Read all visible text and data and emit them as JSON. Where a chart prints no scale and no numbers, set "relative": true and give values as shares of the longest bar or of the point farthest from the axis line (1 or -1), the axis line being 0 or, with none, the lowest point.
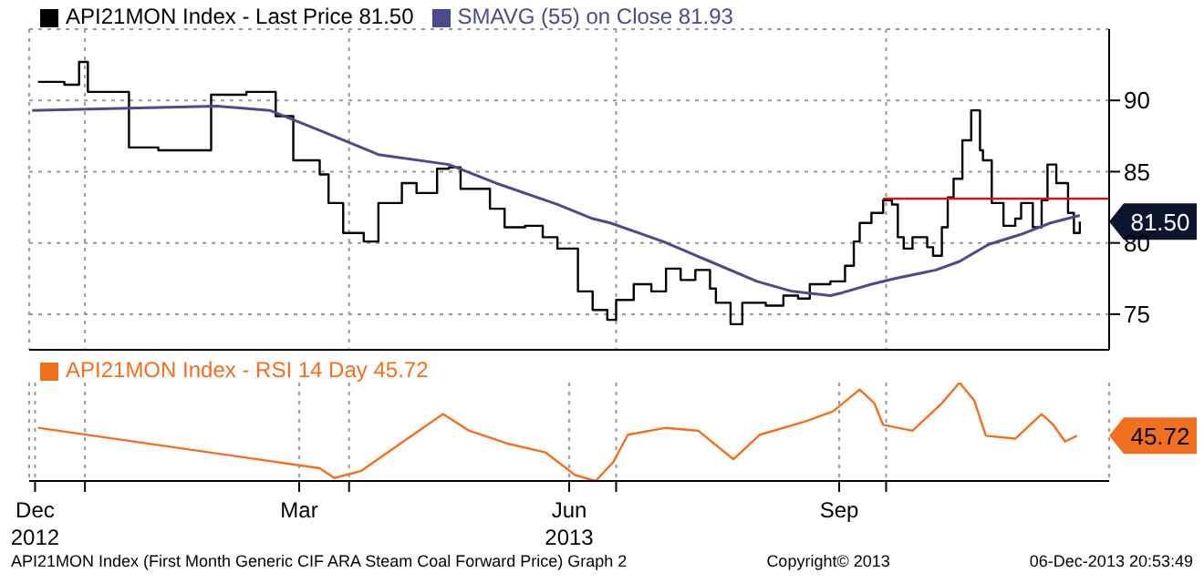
{
  "chart_data": [
    {
      "type": "step",
      "xlim": [
        "2012-12-13",
        "2013-12-16"
      ],
      "xticks": [
        {
          "value": "2013-01-01",
          "label": null
        },
        {
          "value": "2013-04-01",
          "label": null
        },
        {
          "value": "2013-07-01",
          "label": null
        },
        {
          "value": "2013-10-01",
          "label": null
        }
      ],
      "ylim": [
        72.5,
        95
      ],
      "yticks": [
        75,
        80,
        85,
        90
      ],
      "tick_labels": "y",
      "grid": true,
      "legend": "top left",
      "marker": "none",
      "annotations": [
        "81.50"
      ],
      "series": [
        {
          "name": "API21MON Index - Last Price 81.50",
          "color": "#000000",
          "x": [
            "2012-12-16",
            "2012-12-25",
            "2012-12-30",
            "2013-01-02",
            "2013-01-16",
            "2013-01-26",
            "2013-02-13",
            "2013-02-25",
            "2013-03-07",
            "2013-03-13",
            "2013-03-22",
            "2013-03-25",
            "2013-03-30",
            "2013-04-06",
            "2013-04-11",
            "2013-04-19",
            "2013-04-24",
            "2013-05-01",
            "2013-05-05",
            "2013-05-09",
            "2013-05-15",
            "2013-05-19",
            "2013-05-24",
            "2013-05-31",
            "2013-06-06",
            "2013-06-11",
            "2013-06-18",
            "2013-06-23",
            "2013-06-28",
            "2013-07-01",
            "2013-07-07",
            "2013-07-13",
            "2013-07-18",
            "2013-07-23",
            "2013-07-28",
            "2013-08-02",
            "2013-08-04",
            "2013-08-09",
            "2013-08-13",
            "2013-08-21",
            "2013-08-27",
            "2013-09-01",
            "2013-09-05",
            "2013-09-12",
            "2013-09-17",
            "2013-09-20",
            "2013-09-22",
            "2013-09-26",
            "2013-09-30",
            "2013-10-03",
            "2013-10-05",
            "2013-10-07",
            "2013-10-10",
            "2013-10-15",
            "2013-10-17",
            "2013-10-20",
            "2013-10-22",
            "2013-10-24",
            "2013-10-27",
            "2013-10-30",
            "2013-11-02",
            "2013-11-03",
            "2013-11-06",
            "2013-11-10",
            "2013-11-14",
            "2013-11-16",
            "2013-11-20",
            "2013-11-23",
            "2013-11-25",
            "2013-11-28",
            "2013-12-02",
            "2013-12-04",
            "2013-12-06"
          ],
          "values": [
            91.3,
            91.1,
            92.7,
            90.6,
            86.7,
            86.5,
            90.4,
            90.6,
            88.9,
            85.8,
            84.8,
            82.8,
            80.7,
            80.1,
            82.8,
            84.2,
            83.5,
            85.2,
            85.3,
            83.8,
            83.8,
            82.4,
            81.1,
            81.2,
            80.4,
            79.6,
            76.6,
            75.3,
            74.6,
            76.0,
            77.1,
            76.6,
            78.2,
            77.4,
            78.1,
            76.8,
            75.8,
            74.3,
            75.8,
            75.6,
            76.3,
            76.1,
            77.1,
            77.3,
            78.4,
            80.1,
            81.4,
            82.1,
            83.0,
            82.7,
            80.4,
            79.6,
            80.4,
            79.7,
            79.1,
            81.1,
            83.2,
            84.5,
            87.2,
            89.3,
            86.5,
            85.8,
            82.8,
            81.2,
            81.7,
            82.8,
            81.1,
            83.0,
            85.5,
            84.2,
            82.1,
            80.7,
            81.5
          ]
        },
        {
          "name": "SMAVG (55) on Close 81.93",
          "type": "line",
          "color": "#4b4b8c",
          "x": [
            "2012-12-14",
            "2013-02-15",
            "2013-03-05",
            "2013-03-22",
            "2013-04-11",
            "2013-05-05",
            "2013-05-21",
            "2013-06-11",
            "2013-06-23",
            "2013-06-29",
            "2013-07-17",
            "2013-08-02",
            "2013-08-18",
            "2013-08-30",
            "2013-09-12",
            "2013-09-16",
            "2013-09-26",
            "2013-10-04",
            "2013-10-18",
            "2013-10-26",
            "2013-11-05",
            "2013-11-16",
            "2013-11-26",
            "2013-12-06"
          ],
          "values": [
            89.3,
            89.6,
            89.3,
            87.9,
            86.2,
            85.5,
            84.2,
            82.7,
            81.7,
            81.4,
            80.1,
            78.7,
            77.3,
            76.6,
            76.3,
            76.5,
            77.1,
            77.5,
            78.1,
            78.7,
            79.9,
            80.6,
            81.4,
            81.93
          ]
        },
        {
          "type": "line",
          "color": "#ff0000",
          "x": [
            "2013-09-30",
            "2013-12-16"
          ],
          "values": [
            83.1,
            83.1
          ]
        }
      ]
    },
    {
      "type": "line",
      "relative": true,
      "xlim": [
        "2012-12-13",
        "2013-12-16"
      ],
      "xticks": [
        {
          "value": "2012-12-15",
          "label": "Dec 2012"
        },
        {
          "value": "2013-01-01",
          "label": null
        },
        {
          "value": "2013-03-15",
          "label": "Mar"
        },
        {
          "value": "2013-04-01",
          "label": null
        },
        {
          "value": "2013-06-15",
          "label": "Jun 2013"
        },
        {
          "value": "2013-07-01",
          "label": null
        },
        {
          "value": "2013-09-15",
          "label": "Sep"
        },
        {
          "value": "2013-10-01",
          "label": null
        }
      ],
      "tick_labels": "x",
      "grid": "x",
      "legend": "top left",
      "marker": "none",
      "annotations": [
        "45.72",
        "API21MON Index (First Month Generic CIF ARA Steam Coal Forward Price) Graph 2",
        "Copyright© 2013",
        "06-Dec-2013 20:53:49"
      ],
      "series": [
        {
          "name": "API21MON Index - RSI 14 Day 45.72",
          "color": "#f07020",
          "x": [
            "2012-12-16",
            "2013-03-22",
            "2013-03-27",
            "2013-04-05",
            "2013-05-03",
            "2013-05-12",
            "2013-05-25",
            "2013-06-07",
            "2013-06-17",
            "2013-06-24",
            "2013-06-30",
            "2013-07-05",
            "2013-07-18",
            "2013-07-29",
            "2013-08-10",
            "2013-08-19",
            "2013-09-04",
            "2013-09-13",
            "2013-09-22",
            "2013-09-27",
            "2013-09-30",
            "2013-10-10",
            "2013-10-20",
            "2013-10-26",
            "2013-10-31",
            "2013-11-04",
            "2013-11-14",
            "2013-11-23",
            "2013-11-27",
            "2013-12-01",
            "2013-12-05"
          ],
          "values": [
            0.54,
            0.13,
            0.03,
            0.1,
            0.68,
            0.51,
            0.38,
            0.29,
            0.06,
            0,
            0.19,
            0.47,
            0.54,
            0.51,
            0.22,
            0.47,
            0.61,
            0.71,
            0.93,
            0.79,
            0.57,
            0.51,
            0.79,
            1,
            0.82,
            0.46,
            0.43,
            0.68,
            0.57,
            0.4,
            0.46
          ]
        }
      ]
    }
  ]
}
